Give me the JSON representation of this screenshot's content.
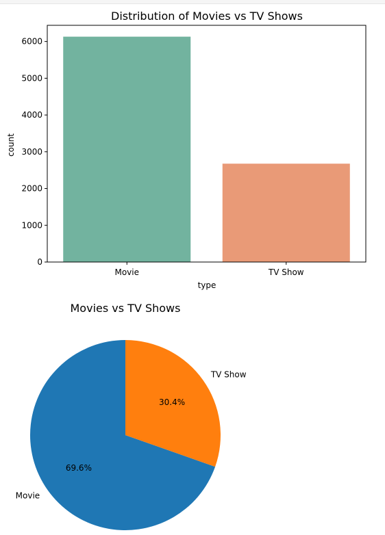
{
  "chart_data": [
    {
      "type": "bar",
      "title": "Distribution of Movies vs TV Shows",
      "xlabel": "type",
      "ylabel": "count",
      "categories": [
        "Movie",
        "TV Show"
      ],
      "values": [
        6131,
        2676
      ],
      "ylim": [
        0,
        6440
      ],
      "yticks": [
        0,
        1000,
        2000,
        3000,
        4000,
        5000,
        6000
      ],
      "colors": [
        "#72b39f",
        "#e99a77"
      ],
      "grid": false
    },
    {
      "type": "pie",
      "title": "Movies vs TV Shows",
      "labels": [
        "Movie",
        "TV Show"
      ],
      "values": [
        69.6,
        30.4
      ],
      "percent_labels": [
        "69.6%",
        "30.4%"
      ],
      "colors": [
        "#1f77b4",
        "#ff7f0e"
      ]
    }
  ]
}
